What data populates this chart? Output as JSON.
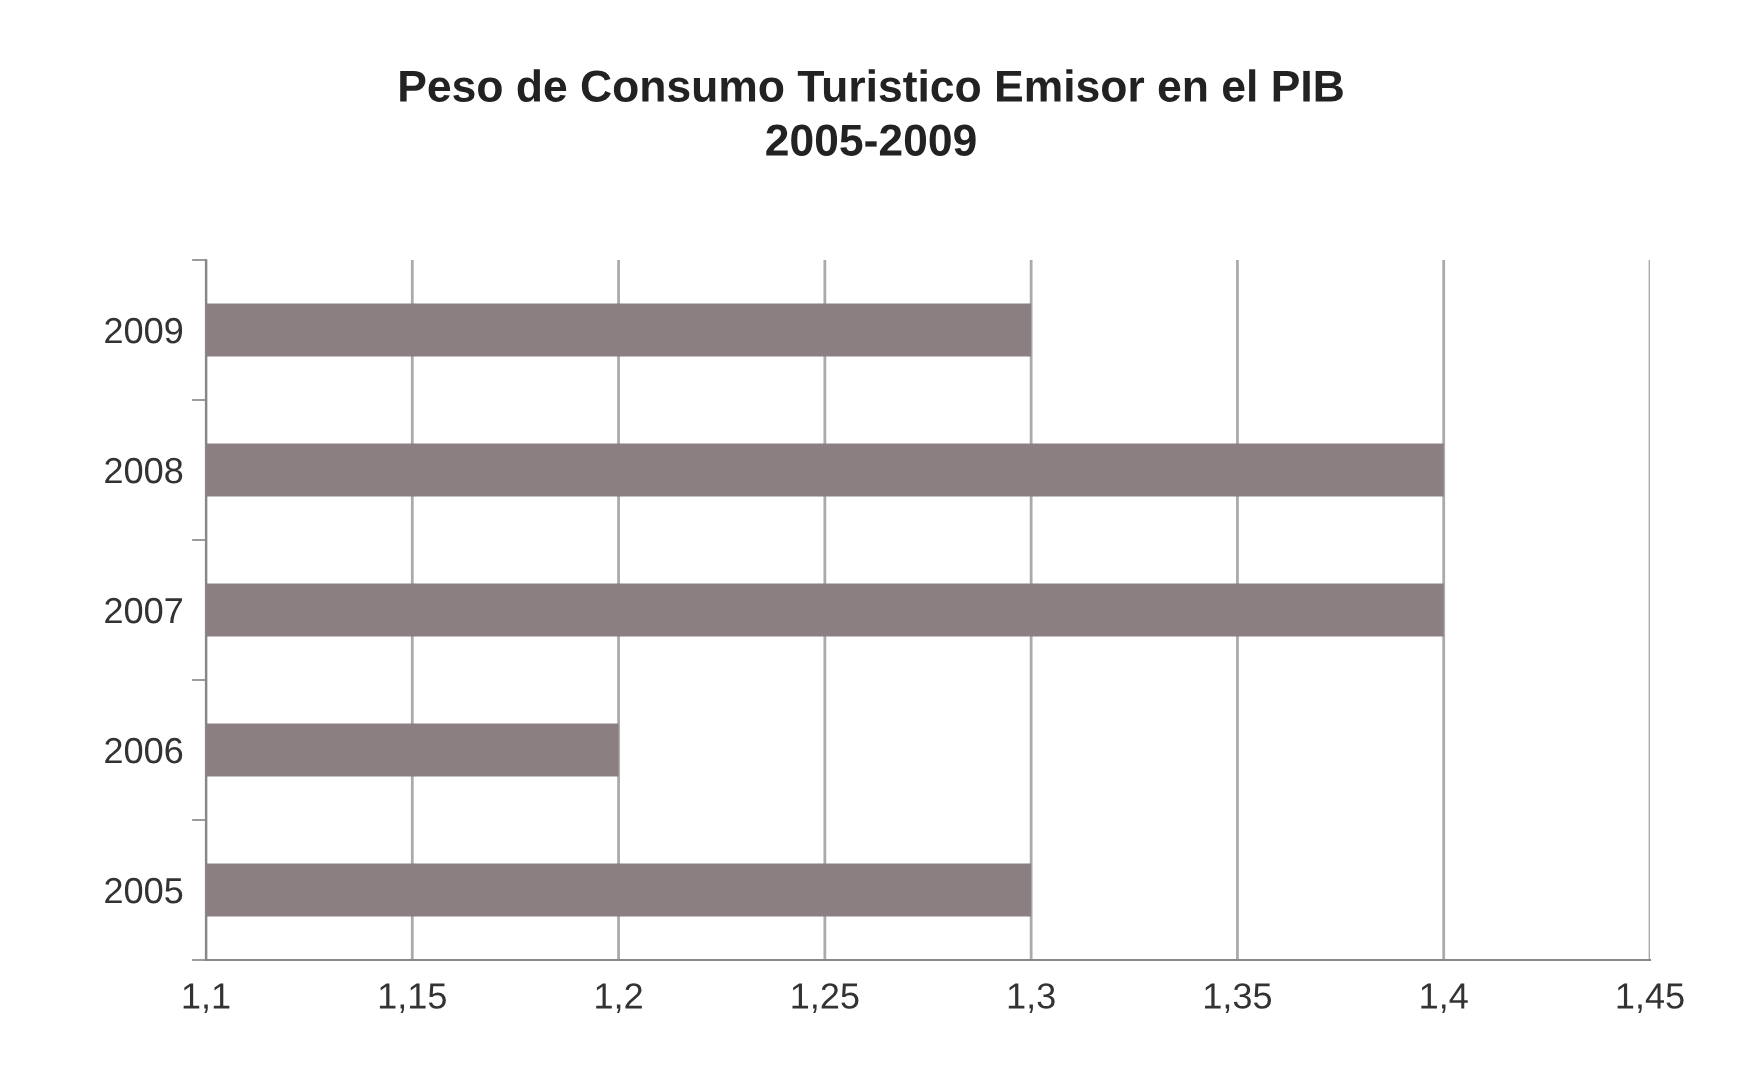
{
  "chart_data": {
    "type": "bar",
    "orientation": "horizontal",
    "title": "Peso de Consumo Turistico Emisor en el PIB",
    "subtitle": "2005-2009",
    "categories": [
      "2009",
      "2008",
      "2007",
      "2006",
      "2005"
    ],
    "values": [
      1.3,
      1.4,
      1.4,
      1.2,
      1.3
    ],
    "color": "#8c7f82",
    "xlim": [
      1.1,
      1.45
    ],
    "xticks": [
      {
        "value": 1.1,
        "label": "1,1"
      },
      {
        "value": 1.15,
        "label": "1,15"
      },
      {
        "value": 1.2,
        "label": "1,2"
      },
      {
        "value": 1.25,
        "label": "1,25"
      },
      {
        "value": 1.3,
        "label": "1,3"
      },
      {
        "value": 1.35,
        "label": "1,35"
      },
      {
        "value": 1.4,
        "label": "1,4"
      },
      {
        "value": 1.45,
        "label": "1,45"
      }
    ],
    "grid": "x"
  }
}
